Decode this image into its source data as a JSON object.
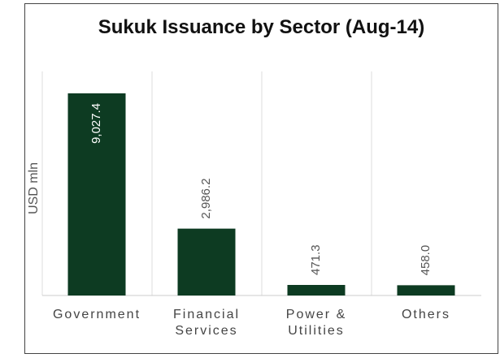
{
  "chart_data": {
    "type": "bar",
    "title": "Sukuk Issuance by Sector (Aug-14)",
    "ylabel": "USD mln",
    "xlabel": "",
    "categories": [
      [
        "Government"
      ],
      [
        "Financial",
        "Services"
      ],
      [
        "Power &",
        "Utilities"
      ],
      [
        "Others"
      ]
    ],
    "values": [
      9027.4,
      2986.2,
      471.3,
      458.0
    ],
    "value_labels": [
      "9,027.4",
      "2,986.2",
      "471.3",
      "458.0"
    ],
    "ylim": [
      0,
      9027.4
    ],
    "grid": false,
    "bar_color": "#0d3b22"
  }
}
